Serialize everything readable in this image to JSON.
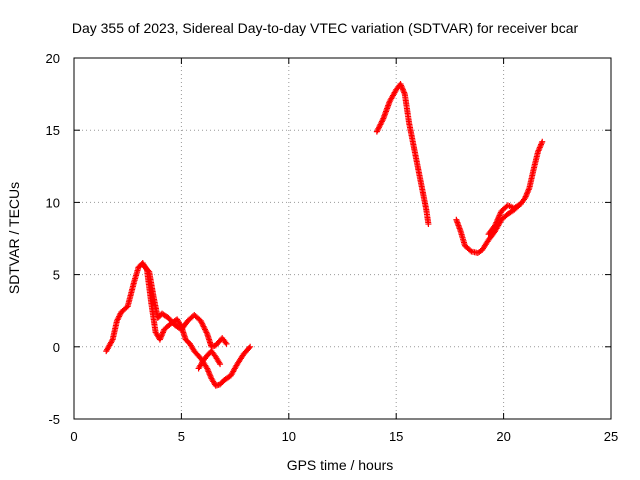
{
  "chart_data": {
    "type": "scatter",
    "title": "Day 355 of 2023, Sidereal Day-to-day VTEC variation (SDTVAR) for receiver bcar",
    "xlabel": "GPS time / hours",
    "ylabel": "SDTVAR / TECUs",
    "xlim": [
      0,
      25
    ],
    "ylim": [
      -5,
      20
    ],
    "x_ticks": [
      0,
      5,
      10,
      15,
      20,
      25
    ],
    "y_ticks": [
      -5,
      0,
      5,
      10,
      15,
      20
    ],
    "grid": true,
    "marker": "+",
    "series": [
      {
        "color": "#ff0000",
        "segments": [
          {
            "x": [
              1.5,
              1.8,
              2.0,
              2.2,
              2.5,
              2.8,
              3.0,
              3.2,
              3.4,
              3.6,
              3.8,
              4.0,
              4.2,
              4.5,
              4.8,
              5.0,
              5.2,
              5.4,
              5.6,
              5.9,
              6.2,
              6.4,
              6.6,
              6.8,
              7.0,
              7.3,
              7.6,
              7.9,
              8.2
            ],
            "y": [
              -0.3,
              0.5,
              1.8,
              2.4,
              2.8,
              4.5,
              5.5,
              5.8,
              5.3,
              3.0,
              1.0,
              0.5,
              1.2,
              1.6,
              1.9,
              1.4,
              0.5,
              0.2,
              -0.3,
              -0.8,
              -1.5,
              -2.2,
              -2.7,
              -2.6,
              -2.3,
              -2.0,
              -1.2,
              -0.5,
              0.0
            ]
          },
          {
            "x": [
              3.2,
              3.5,
              3.7,
              3.9,
              4.1,
              4.4,
              4.7,
              5.0,
              5.3,
              5.6,
              5.9,
              6.2,
              6.4,
              6.6,
              6.9,
              7.1
            ],
            "y": [
              5.7,
              5.2,
              3.5,
              2.0,
              2.3,
              2.0,
              1.5,
              1.2,
              1.8,
              2.2,
              1.8,
              0.9,
              0.0,
              0.1,
              0.6,
              0.2
            ]
          },
          {
            "x": [
              5.8,
              6.0,
              6.2,
              6.4,
              6.6,
              6.8
            ],
            "y": [
              -1.5,
              -1.0,
              -0.6,
              -0.3,
              -0.7,
              -1.2
            ]
          },
          {
            "x": [
              14.1,
              14.4,
              14.7,
              15.0,
              15.2,
              15.4,
              15.6,
              15.8,
              16.0,
              16.2,
              16.4,
              16.5
            ],
            "y": [
              14.9,
              15.8,
              17.0,
              17.8,
              18.2,
              17.5,
              15.5,
              14.0,
              12.5,
              11.0,
              9.5,
              8.5
            ]
          },
          {
            "x": [
              17.8,
              18.0,
              18.2,
              18.5,
              18.8,
              19.0,
              19.3,
              19.6,
              19.9,
              20.2,
              20.5,
              20.8,
              21.0,
              21.2,
              21.4,
              21.6,
              21.8
            ],
            "y": [
              8.8,
              8.0,
              7.0,
              6.6,
              6.5,
              6.7,
              7.4,
              8.0,
              8.8,
              9.2,
              9.5,
              9.9,
              10.3,
              11.0,
              12.3,
              13.5,
              14.2
            ]
          },
          {
            "x": [
              19.3,
              19.6,
              19.9,
              20.2,
              20.5,
              20.8
            ],
            "y": [
              7.8,
              8.4,
              9.4,
              9.8,
              9.6,
              9.9
            ]
          }
        ]
      }
    ]
  }
}
